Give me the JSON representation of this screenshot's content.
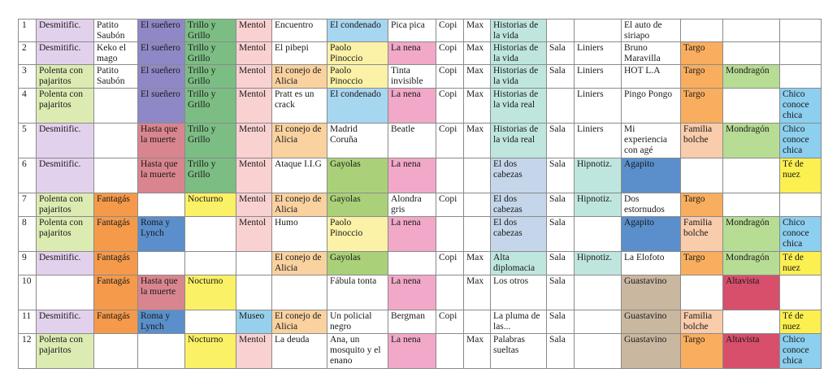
{
  "colors": {
    "desmitific": "#e2d1ec",
    "polenta": "#dcebb2",
    "fantagas": "#f59a4a",
    "suenero": "#8f88c6",
    "hasta": "#d9858f",
    "roma": "#5a8fcb",
    "trillo": "#7cbd84",
    "nocturno": "#fbf166",
    "mentol": "#f9d1d1",
    "museo": "#96d0ec",
    "conejo": "#f9d2a0",
    "condenado": "#a7d6f0",
    "paolo": "#fbf1a7",
    "gayolas": "#aad179",
    "lanena": "#f2a8c8",
    "historias": "#bfe6de",
    "dos_cabezas": "#c5d6ea",
    "hipnotiz": "#bfe6de",
    "agapito": "#5a8fcb",
    "guastavino": "#c9b79f",
    "targo": "#f9ae5f",
    "familia": "#f9ccab",
    "mondragon": "#b7dc94",
    "altavista": "#d74f6a",
    "chico": "#8ccfee",
    "te_de_nuez": "#fbf050"
  },
  "rows": [
    {
      "num": "1",
      "cells": [
        {
          "text": "Desmitific.",
          "color": "desmitific"
        },
        {
          "text": "Patito Saubón"
        },
        {
          "text": "El sueñero",
          "color": "suenero"
        },
        {
          "text": "Trillo y Grillo",
          "color": "trillo"
        },
        {
          "text": "Mentol",
          "color": "mentol"
        },
        {
          "text": "Encuentro"
        },
        {
          "text": "El condenado",
          "color": "condenado"
        },
        {
          "text": "Pica pica"
        },
        {
          "text": "Copi"
        },
        {
          "text": "Max"
        },
        {
          "text": "Historias de la vida",
          "color": "historias"
        },
        {
          "text": ""
        },
        {
          "text": ""
        },
        {
          "text": "El auto de siriapo"
        },
        {
          "text": ""
        },
        {
          "text": ""
        },
        {
          "text": ""
        }
      ]
    },
    {
      "num": "2",
      "cells": [
        {
          "text": "Desmitific.",
          "color": "desmitific"
        },
        {
          "text": "Keko el mago"
        },
        {
          "text": "El sueñero",
          "color": "suenero"
        },
        {
          "text": "Trillo y Grillo",
          "color": "trillo"
        },
        {
          "text": "Mentol",
          "color": "mentol"
        },
        {
          "text": "El pibepi"
        },
        {
          "text": "Paolo Pinoccio",
          "color": "paolo"
        },
        {
          "text": "La nena",
          "color": "lanena"
        },
        {
          "text": "Copi"
        },
        {
          "text": "Max"
        },
        {
          "text": "Historias de la vida",
          "color": "historias"
        },
        {
          "text": "Sala"
        },
        {
          "text": "Liniers"
        },
        {
          "text": "Bruno Maravilla"
        },
        {
          "text": "Targo",
          "color": "targo"
        },
        {
          "text": ""
        },
        {
          "text": ""
        }
      ]
    },
    {
      "num": "3",
      "cells": [
        {
          "text": "Polenta con pajaritos",
          "color": "polenta"
        },
        {
          "text": "Patito Saubón"
        },
        {
          "text": "El sueñero",
          "color": "suenero"
        },
        {
          "text": "Trillo y Grillo",
          "color": "trillo"
        },
        {
          "text": "Mentol",
          "color": "mentol"
        },
        {
          "text": "El conejo de Alicia",
          "color": "conejo"
        },
        {
          "text": "Paolo Pinoccio",
          "color": "paolo"
        },
        {
          "text": "Tinta invisible"
        },
        {
          "text": "Copi"
        },
        {
          "text": "Max"
        },
        {
          "text": "Historias de la vida",
          "color": "historias"
        },
        {
          "text": "Sala"
        },
        {
          "text": "Liniers"
        },
        {
          "text": "HOT L.A"
        },
        {
          "text": "Targo",
          "color": "targo"
        },
        {
          "text": "Mondragón",
          "color": "mondragon"
        },
        {
          "text": ""
        }
      ]
    },
    {
      "num": "4",
      "cells": [
        {
          "text": "Polenta con pajaritos",
          "color": "polenta"
        },
        {
          "text": ""
        },
        {
          "text": "El sueñero",
          "color": "suenero"
        },
        {
          "text": "Trillo y Grillo",
          "color": "trillo"
        },
        {
          "text": "Mentol",
          "color": "mentol"
        },
        {
          "text": "Pratt es un crack"
        },
        {
          "text": "El condenado",
          "color": "condenado"
        },
        {
          "text": "La nena",
          "color": "lanena"
        },
        {
          "text": "Copi"
        },
        {
          "text": "Max"
        },
        {
          "text": "Historias de la vida real",
          "color": "historias"
        },
        {
          "text": ""
        },
        {
          "text": "Liniers"
        },
        {
          "text": "Pingo Pongo"
        },
        {
          "text": "Targo",
          "color": "targo"
        },
        {
          "text": ""
        },
        {
          "text": "Chico conoce chica",
          "color": "chico"
        }
      ]
    },
    {
      "num": "5",
      "cells": [
        {
          "text": "Desmitific.",
          "color": "desmitific"
        },
        {
          "text": ""
        },
        {
          "text": "Hasta que la muerte",
          "color": "hasta"
        },
        {
          "text": "Trillo y Grillo",
          "color": "trillo"
        },
        {
          "text": "Mentol",
          "color": "mentol"
        },
        {
          "text": "El conejo de Alicia",
          "color": "conejo"
        },
        {
          "text": "Madrid Coruña"
        },
        {
          "text": "Beatle"
        },
        {
          "text": "Copi"
        },
        {
          "text": "Max"
        },
        {
          "text": "Historias de la vida real",
          "color": "historias"
        },
        {
          "text": "Sala"
        },
        {
          "text": "Liniers"
        },
        {
          "text": "Mi experiencia con agé"
        },
        {
          "text": "Familia bolche",
          "color": "familia"
        },
        {
          "text": "Mondragón",
          "color": "mondragon"
        },
        {
          "text": "Chico conoce chica",
          "color": "chico"
        }
      ]
    },
    {
      "num": "6",
      "cells": [
        {
          "text": "Desmitific.",
          "color": "desmitific"
        },
        {
          "text": ""
        },
        {
          "text": "Hasta que la muerte",
          "color": "hasta"
        },
        {
          "text": "Trillo y Grillo",
          "color": "trillo"
        },
        {
          "text": "Mentol",
          "color": "mentol"
        },
        {
          "text": "Ataque I.I.G"
        },
        {
          "text": "Gayolas",
          "color": "gayolas"
        },
        {
          "text": "La nena",
          "color": "lanena"
        },
        {
          "text": ""
        },
        {
          "text": ""
        },
        {
          "text": "El dos cabezas",
          "color": "dos_cabezas"
        },
        {
          "text": "Sala"
        },
        {
          "text": "Hipnotiz.",
          "color": "hipnotiz"
        },
        {
          "text": "Agapito",
          "color": "agapito"
        },
        {
          "text": ""
        },
        {
          "text": ""
        },
        {
          "text": "Té de nuez",
          "color": "te_de_nuez"
        }
      ]
    },
    {
      "num": "7",
      "cells": [
        {
          "text": "Polenta con pajaritos",
          "color": "polenta"
        },
        {
          "text": "Fantagás",
          "color": "fantagas"
        },
        {
          "text": ""
        },
        {
          "text": "Nocturno",
          "color": "nocturno"
        },
        {
          "text": "Mentol",
          "color": "mentol"
        },
        {
          "text": "El conejo de Alicia",
          "color": "conejo"
        },
        {
          "text": "Gayolas",
          "color": "gayolas"
        },
        {
          "text": "Alondra gris"
        },
        {
          "text": "Copi"
        },
        {
          "text": ""
        },
        {
          "text": "El dos cabezas",
          "color": "dos_cabezas"
        },
        {
          "text": "Sala"
        },
        {
          "text": "Hipnotiz.",
          "color": "hipnotiz"
        },
        {
          "text": "Dos estornudos"
        },
        {
          "text": "Targo",
          "color": "targo"
        },
        {
          "text": ""
        },
        {
          "text": ""
        }
      ]
    },
    {
      "num": "8",
      "cells": [
        {
          "text": "Polenta con pajaritos",
          "color": "polenta"
        },
        {
          "text": "Fantagás",
          "color": "fantagas"
        },
        {
          "text": "Roma y Lynch",
          "color": "roma"
        },
        {
          "text": ""
        },
        {
          "text": "Mentol",
          "color": "mentol"
        },
        {
          "text": "Humo"
        },
        {
          "text": "Paolo Pinoccio",
          "color": "paolo"
        },
        {
          "text": "La nena",
          "color": "lanena"
        },
        {
          "text": ""
        },
        {
          "text": ""
        },
        {
          "text": "El dos cabezas",
          "color": "dos_cabezas"
        },
        {
          "text": "Sala"
        },
        {
          "text": ""
        },
        {
          "text": "Agapito",
          "color": "agapito"
        },
        {
          "text": "Familia bolche",
          "color": "familia"
        },
        {
          "text": "Mondragón",
          "color": "mondragon"
        },
        {
          "text": "Chico conoce chica",
          "color": "chico"
        }
      ]
    },
    {
      "num": "9",
      "cells": [
        {
          "text": "Desmitific.",
          "color": "desmitific"
        },
        {
          "text": "Fantagás",
          "color": "fantagas"
        },
        {
          "text": ""
        },
        {
          "text": ""
        },
        {
          "text": ""
        },
        {
          "text": "El conejo de Alicia",
          "color": "conejo"
        },
        {
          "text": "Gayolas",
          "color": "gayolas"
        },
        {
          "text": ""
        },
        {
          "text": "Copi"
        },
        {
          "text": "Max"
        },
        {
          "text": "Alta diplomacia",
          "color": "historias"
        },
        {
          "text": "Sala"
        },
        {
          "text": "Hipnotiz.",
          "color": "hipnotiz"
        },
        {
          "text": "La Elofoto"
        },
        {
          "text": "Targo",
          "color": "targo"
        },
        {
          "text": "Mondragón",
          "color": "mondragon"
        },
        {
          "text": "Té de nuez",
          "color": "te_de_nuez"
        }
      ]
    },
    {
      "num": "10",
      "cells": [
        {
          "text": ""
        },
        {
          "text": "Fantagás",
          "color": "fantagas"
        },
        {
          "text": "Hasta que la muerte",
          "color": "hasta"
        },
        {
          "text": "Nocturno",
          "color": "nocturno"
        },
        {
          "text": ""
        },
        {
          "text": ""
        },
        {
          "text": "Fábula tonta"
        },
        {
          "text": "La nena",
          "color": "lanena"
        },
        {
          "text": ""
        },
        {
          "text": "Max"
        },
        {
          "text": "Los otros"
        },
        {
          "text": "Sala"
        },
        {
          "text": ""
        },
        {
          "text": "Guastavino",
          "color": "guastavino"
        },
        {
          "text": ""
        },
        {
          "text": "Altavista",
          "color": "altavista"
        },
        {
          "text": ""
        }
      ]
    },
    {
      "num": "11",
      "cells": [
        {
          "text": "Desmitific.",
          "color": "desmitific"
        },
        {
          "text": "Fantagás",
          "color": "fantagas"
        },
        {
          "text": "Roma y Lynch",
          "color": "roma"
        },
        {
          "text": ""
        },
        {
          "text": "Museo",
          "color": "museo"
        },
        {
          "text": "El conejo de Alicia",
          "color": "conejo"
        },
        {
          "text": "Un policial negro"
        },
        {
          "text": "Bergman"
        },
        {
          "text": "Copi"
        },
        {
          "text": ""
        },
        {
          "text": "La pluma de las..."
        },
        {
          "text": "Sala"
        },
        {
          "text": ""
        },
        {
          "text": "Guastavino",
          "color": "guastavino"
        },
        {
          "text": "Familia bolche",
          "color": "familia"
        },
        {
          "text": ""
        },
        {
          "text": "Té de nuez",
          "color": "te_de_nuez"
        }
      ]
    },
    {
      "num": "12",
      "cells": [
        {
          "text": "Polenta con pajaritos",
          "color": "polenta"
        },
        {
          "text": ""
        },
        {
          "text": ""
        },
        {
          "text": "Nocturno",
          "color": "nocturno"
        },
        {
          "text": "Mentol",
          "color": "mentol"
        },
        {
          "text": "La deuda"
        },
        {
          "text": "Ana, un mosquito y el enano"
        },
        {
          "text": "La nena",
          "color": "lanena"
        },
        {
          "text": ""
        },
        {
          "text": "Max"
        },
        {
          "text": "Palabras sueltas"
        },
        {
          "text": "Sala"
        },
        {
          "text": ""
        },
        {
          "text": "Guastavino",
          "color": "guastavino"
        },
        {
          "text": "Targo",
          "color": "targo"
        },
        {
          "text": "Altavista",
          "color": "altavista"
        },
        {
          "text": "Chico conoce chica",
          "color": "chico"
        }
      ]
    }
  ]
}
